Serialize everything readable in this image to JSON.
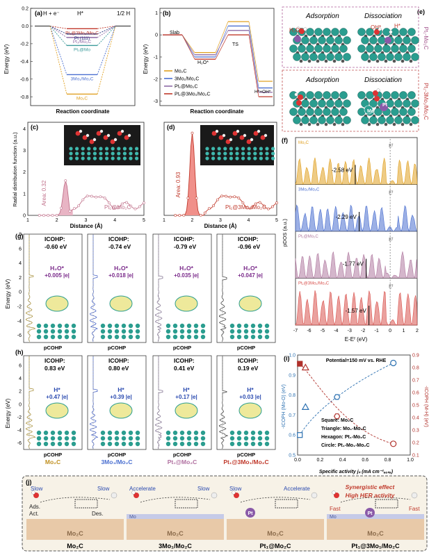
{
  "panels": {
    "a": {
      "tag": "(a)",
      "states": [
        "H + e⁻",
        "H*",
        "1/2 H"
      ],
      "ylabel": "Energy (eV)",
      "xlabel": "Reaction coordinate",
      "yticks": [
        "0.2",
        "0.0",
        "-0.2",
        "-0.4",
        "-0.6",
        "-0.8"
      ],
      "series": [
        {
          "name": "Pt₁@3Mo₁/Mo₂C",
          "value": -0.03,
          "color": "#c0392b"
        },
        {
          "name": "Pt (111)",
          "value": -0.09,
          "color": "#1f2f7a"
        },
        {
          "name": "Pt₁/Mo₂C",
          "value": -0.13,
          "color": "#8e6aa6"
        },
        {
          "name": "Pt₁@Mo",
          "value": -0.22,
          "color": "#3a9a9a"
        },
        {
          "name": "3Mo₁/Mo₂C",
          "value": -0.55,
          "color": "#4a6fd0"
        },
        {
          "name": "Mo₂C",
          "value": -0.77,
          "color": "#e0a020"
        }
      ]
    },
    "b": {
      "tag": "(b)",
      "ylabel": "Energy (eV)",
      "xlabel": "Reaction coordinate",
      "yticks": [
        "1",
        "0",
        "-1",
        "-2",
        "-3"
      ],
      "labels": {
        "slab": "Slab",
        "h2o": "H₂O*",
        "ts": "TS",
        "final": "H*+OH*"
      },
      "legend": [
        "Mo₂C",
        "3Mo₁/Mo₂C",
        "Pt₁@Mo₂C",
        "Pt₁@3Mo₁/Mo₂C"
      ],
      "colors": [
        "#e0a020",
        "#4a6fd0",
        "#8e6aa6",
        "#c0392b"
      ]
    },
    "e": {
      "tag": "(e)",
      "top_left": "Adsorption",
      "top_right": "Dissociation",
      "side_top": "Pt₁-Mo₂C",
      "bottom_left": "Adsorption",
      "bottom_right": "Dissociation",
      "side_bottom": "Pt₁-3Mo₁/Mo₂C",
      "h2o": "H₂O*",
      "oh": "OH*",
      "h": "H*",
      "mo": "Mo",
      "pt": "Pt"
    },
    "c": {
      "tag": "(c)",
      "area": "Area: 0.32",
      "label": "Pt₁@Mo₂C",
      "ylabel": "Radial distribution function (a.u.)",
      "xlabel": "Distance (Å)",
      "yticks": [
        "4",
        "3",
        "2",
        "1",
        "0"
      ]
    },
    "d": {
      "tag": "(d)",
      "area": "Area: 0.93",
      "label": "Pt₁@3Mo₁/Mo₂C",
      "xlabel": "Distance (Å)"
    },
    "f": {
      "tag": "(f)",
      "ylabel": "pDOS (a.u.)",
      "xlabel": "E-Eᶠ (eV)",
      "xticks": [
        "-7",
        "-6",
        "-5",
        "-4",
        "-3",
        "-2",
        "-1",
        "0",
        "1",
        "2"
      ],
      "ef": "Eᶠ",
      "rows": [
        {
          "name": "Mo₂C",
          "value": "-2.58 eV",
          "color": "#e0a020"
        },
        {
          "name": "3Mo₁/Mo₂C",
          "value": "-2.29 eV",
          "color": "#4a6fd0"
        },
        {
          "name": "Pt₁@Mo₂C",
          "value": "-1.77 eV",
          "color": "#b07aa0"
        },
        {
          "name": "Pt₁@3Mo₁/Mo₂C",
          "value": "-1.57 eV",
          "color": "#d9534f"
        }
      ]
    },
    "g": {
      "tag": "(g)",
      "ylabel": "Energy (eV)",
      "xlabel": "pCOHP",
      "yticks": [
        "8",
        "6",
        "4",
        "2",
        "0",
        "-2",
        "-4",
        "-6"
      ],
      "cols": [
        {
          "icohp": "ICOHP:",
          "val": "-0.60 eV",
          "ads": "H₂O*",
          "charge": "+0.005 |e|"
        },
        {
          "icohp": "ICOHP:",
          "val": "-0.74 eV",
          "ads": "H₂O*",
          "charge": "+0.018 |e|"
        },
        {
          "icohp": "ICOHP:",
          "val": "-0.79 eV",
          "ads": "H₂O*",
          "charge": "+0.035 |e|"
        },
        {
          "icohp": "ICOHP:",
          "val": "-0.96 eV",
          "ads": "H₂O*",
          "charge": "+0.047 |e|"
        }
      ]
    },
    "h": {
      "tag": "(h)",
      "ylabel": "Energy (eV)",
      "xlabel": "pCOHP",
      "yticks": [
        "6",
        "4",
        "2",
        "0",
        "-2",
        "-4",
        "-6"
      ],
      "titles": [
        "Mo₂C",
        "3Mo₁/Mo₂C",
        "Pt₁@Mo₂C",
        "Pt₁@3Mo₁/Mo₂C"
      ],
      "cols": [
        {
          "icohp": "ICOHP:",
          "val": "0.83 eV",
          "ads": "H*",
          "charge": "+0.47 |e|"
        },
        {
          "icohp": "ICOHP:",
          "val": "0.80 eV",
          "ads": "H*",
          "charge": "+0.39 |e|"
        },
        {
          "icohp": "ICOHP:",
          "val": "0.41 eV",
          "ads": "H*",
          "charge": "+0.17 |e|"
        },
        {
          "icohp": "ICOHP:",
          "val": "0.19 eV",
          "ads": "H*",
          "charge": "+0.03 |e|"
        }
      ]
    },
    "i": {
      "tag": "(i)",
      "title": "Potential=150 mV vs. RHE",
      "ylabel_left": "-ICOPH (Mo-O) (eV)",
      "ylabel_right": "-ICOPH (M-H) (eV)",
      "xlabel": "Specific activity jₛ (mA cm⁻²ₑₒₛₐ)",
      "xticks": [
        "0.0",
        "0.2",
        "0.4",
        "0.6",
        "0.8",
        "1.0"
      ],
      "yticks_left": [
        "1.0",
        "0.9",
        "0.8",
        "0.7",
        "0.6",
        "0.5"
      ],
      "yticks_right": [
        "0.9",
        "0.8",
        "0.7",
        "0.6",
        "0.5",
        "0.4",
        "0.3",
        "0.2",
        "0.1"
      ],
      "legend": [
        "Square:   Mo₂C",
        "Triangle: Mo₁-Mo₂C",
        "Hexagon: Pt₁-Mo₂C",
        "Circle:    Pt₁-Mo₁-Mo₂C"
      ]
    },
    "j": {
      "tag": "(j)",
      "slow": "Slow",
      "accelerate": "Accelerate",
      "fast": "Fast",
      "ads": "Ads.",
      "act": "Act.",
      "des": "Des.",
      "synergy": "Synergistic effect",
      "her": "High HER activity",
      "mo2c": "Mo₂C",
      "mo": "Mo",
      "pt": "Pt",
      "captions": [
        "Mo₂C",
        "3Mo₁/Mo₂C",
        "Pt₁@Mo₂C",
        "Pt₁@3Mo₁/Mo₂C"
      ]
    }
  },
  "chart_data": [
    {
      "type": "line",
      "panel": "a",
      "x": [
        "H + e⁻",
        "H*",
        "1/2 H"
      ],
      "ylabel": "Energy (eV)",
      "xlabel": "Reaction coordinate",
      "ylim": [
        -0.9,
        0.2
      ],
      "series": [
        {
          "name": "Pt₁@3Mo₁/Mo₂C",
          "values": [
            0,
            -0.03,
            0
          ]
        },
        {
          "name": "Pt (111)",
          "values": [
            0,
            -0.09,
            0
          ]
        },
        {
          "name": "Pt₁/Mo₂C",
          "values": [
            0,
            -0.13,
            0
          ]
        },
        {
          "name": "Pt₁@Mo",
          "values": [
            0,
            -0.22,
            0
          ]
        },
        {
          "name": "3Mo₁/Mo₂C",
          "values": [
            0,
            -0.55,
            0
          ]
        },
        {
          "name": "Mo₂C",
          "values": [
            0,
            -0.77,
            0
          ]
        }
      ]
    },
    {
      "type": "line",
      "panel": "b",
      "x": [
        "Slab",
        "H₂O*",
        "TS",
        "H*+OH*"
      ],
      "ylim": [
        -3.2,
        1.2
      ],
      "series": [
        {
          "name": "Mo₂C",
          "values": [
            0,
            -0.8,
            0.6,
            -2.1
          ]
        },
        {
          "name": "3Mo₁/Mo₂C",
          "values": [
            0,
            -1.0,
            0.4,
            -2.4
          ]
        },
        {
          "name": "Pt₁@Mo₂C",
          "values": [
            0,
            -0.9,
            0.2,
            -2.6
          ]
        },
        {
          "name": "Pt₁@3Mo₁/Mo₂C",
          "values": [
            0,
            -1.1,
            0.0,
            -2.8
          ]
        }
      ]
    },
    {
      "type": "scatter",
      "panel": "i",
      "x_label": "Specific activity",
      "series": [
        {
          "name": "-ICOPH (Mo-O)",
          "points": [
            [
              0.02,
              0.6
            ],
            [
              0.07,
              0.74
            ],
            [
              0.35,
              0.79
            ],
            [
              0.85,
              0.96
            ]
          ]
        },
        {
          "name": "-ICOPH (M-H)",
          "points": [
            [
              0.02,
              0.83
            ],
            [
              0.07,
              0.8
            ],
            [
              0.35,
              0.41
            ],
            [
              0.85,
              0.19
            ]
          ]
        }
      ]
    }
  ]
}
